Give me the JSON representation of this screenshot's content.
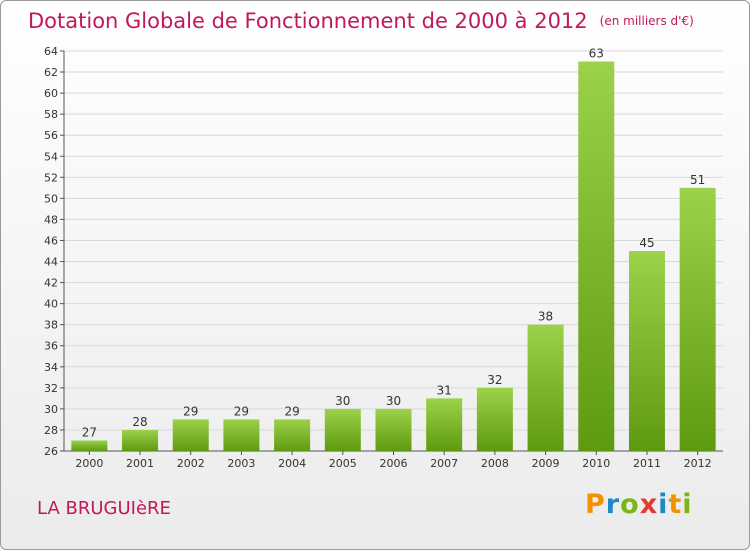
{
  "title": "Dotation Globale de Fonctionnement de 2000 à 2012",
  "unit": "(en milliers d'€)",
  "place": "LA BRUGUIèRE",
  "logo": {
    "letters": [
      "P",
      "r",
      "o",
      "x",
      "i",
      "t",
      "i"
    ],
    "colors": [
      "#f39200",
      "#1e88c8",
      "#7cb518",
      "#e53935",
      "#1e88c8",
      "#f39200",
      "#7cb518"
    ]
  },
  "colors": {
    "title": "#c2185b",
    "bar_light": "#9bd24a",
    "bar_dark": "#5e9a10",
    "grid": "#d8d8d8",
    "axis": "#555555"
  },
  "chart_data": {
    "type": "bar",
    "categories": [
      "2000",
      "2001",
      "2002",
      "2003",
      "2004",
      "2005",
      "2006",
      "2007",
      "2008",
      "2009",
      "2010",
      "2011",
      "2012"
    ],
    "values": [
      27,
      28,
      29,
      29,
      29,
      30,
      30,
      31,
      32,
      38,
      63,
      45,
      51
    ],
    "ylim": [
      26,
      64
    ],
    "ytick_step": 2,
    "grid": "horizontal",
    "xlabel": "",
    "ylabel": ""
  }
}
